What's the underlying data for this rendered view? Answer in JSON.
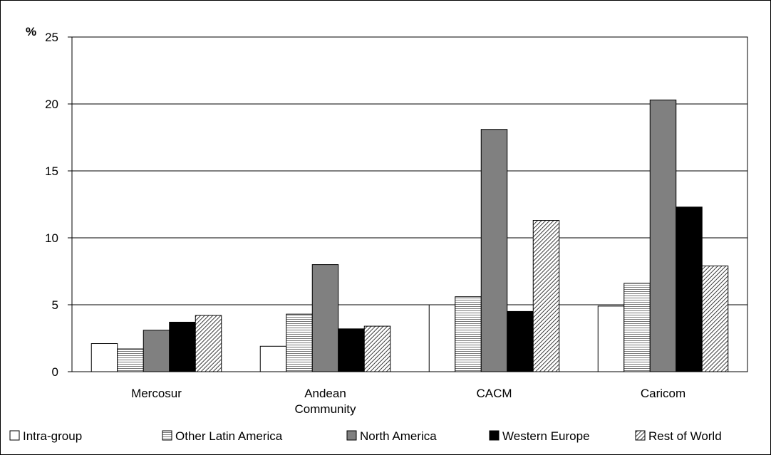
{
  "chart_data": {
    "type": "bar",
    "y_unit": "%",
    "categories": [
      "Mercosur",
      "Andean Community",
      "CACM",
      "Caricom"
    ],
    "category_label_lines": [
      [
        "Mercosur"
      ],
      [
        "Andean",
        "Community"
      ],
      [
        "CACM"
      ],
      [
        "Caricom"
      ]
    ],
    "ylim": [
      0,
      25
    ],
    "yticks": [
      0,
      5,
      10,
      15,
      20,
      25
    ],
    "grid": true,
    "legend_position": "bottom",
    "series": [
      {
        "name": "Intra-group",
        "color": "#ffffff",
        "pattern": "none",
        "values": [
          2.1,
          1.9,
          5.0,
          4.9
        ]
      },
      {
        "name": "Other Latin America",
        "color": "#d9d9d9",
        "pattern": "horizontal-lines",
        "values": [
          1.7,
          4.3,
          5.6,
          6.6
        ]
      },
      {
        "name": "North America",
        "color": "#808080",
        "pattern": "none",
        "values": [
          3.1,
          8.0,
          18.1,
          20.3
        ]
      },
      {
        "name": "Western Europe",
        "color": "#000000",
        "pattern": "none",
        "values": [
          3.7,
          3.2,
          4.5,
          12.3
        ]
      },
      {
        "name": "Rest of World",
        "color": "#d9d9d9",
        "pattern": "diagonal-lines",
        "values": [
          4.2,
          3.4,
          11.3,
          7.9
        ]
      }
    ]
  }
}
